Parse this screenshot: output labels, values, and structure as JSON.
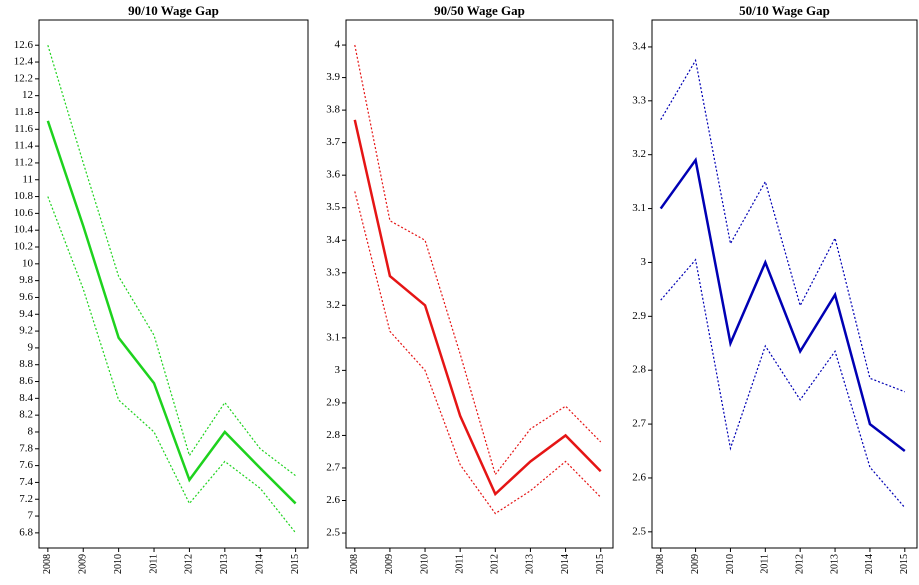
{
  "chart_data": [
    {
      "type": "line",
      "title": "90/10 Wage Gap",
      "x": [
        2008,
        2009,
        2010,
        2011,
        2012,
        2013,
        2014,
        2015
      ],
      "xlim": [
        2007.75,
        2015.35
      ],
      "xticks": [
        2008,
        2009,
        2010,
        2011,
        2012,
        2013,
        2014,
        2015
      ],
      "ylim": [
        6.62,
        12.9
      ],
      "yticks": [
        6.8,
        7,
        7.2,
        7.4,
        7.6,
        7.8,
        8,
        8.2,
        8.4,
        8.6,
        8.8,
        9,
        9.2,
        9.4,
        9.6,
        9.8,
        10,
        10.2,
        10.4,
        10.6,
        10.8,
        11,
        11.2,
        11.4,
        11.6,
        11.8,
        12,
        12.2,
        12.4,
        12.6
      ],
      "series": [
        {
          "color": "#1ed21e",
          "linestyle": "solid",
          "values": [
            11.7,
            10.45,
            9.12,
            8.58,
            7.43,
            8.0,
            7.57,
            7.15
          ]
        },
        {
          "color": "#1ed21e",
          "linestyle": "dotted",
          "values": [
            12.6,
            11.2,
            9.85,
            9.15,
            7.72,
            8.35,
            7.8,
            7.48
          ]
        },
        {
          "color": "#1ed21e",
          "linestyle": "dotted",
          "values": [
            10.8,
            9.7,
            8.38,
            8.0,
            7.15,
            7.65,
            7.33,
            6.8
          ]
        }
      ]
    },
    {
      "type": "line",
      "title": "90/50 Wage Gap",
      "x": [
        2008,
        2009,
        2010,
        2011,
        2012,
        2013,
        2014,
        2015
      ],
      "xlim": [
        2007.75,
        2015.35
      ],
      "xticks": [
        2008,
        2009,
        2010,
        2011,
        2012,
        2013,
        2014,
        2015
      ],
      "ylim": [
        2.454,
        4.077
      ],
      "yticks": [
        2.5,
        2.6,
        2.7,
        2.8,
        2.9,
        3,
        3.1,
        3.2,
        3.3,
        3.4,
        3.5,
        3.6,
        3.7,
        3.8,
        3.9,
        4
      ],
      "series": [
        {
          "color": "#e51515",
          "linestyle": "solid",
          "values": [
            3.77,
            3.29,
            3.2,
            2.86,
            2.62,
            2.72,
            2.8,
            2.69
          ]
        },
        {
          "color": "#e51515",
          "linestyle": "dotted",
          "values": [
            4.0,
            3.46,
            3.4,
            3.05,
            2.68,
            2.82,
            2.89,
            2.78
          ]
        },
        {
          "color": "#e51515",
          "linestyle": "dotted",
          "values": [
            3.55,
            3.12,
            3.0,
            2.71,
            2.56,
            2.63,
            2.72,
            2.61
          ]
        }
      ]
    },
    {
      "type": "line",
      "title": "50/10 Wage Gap",
      "x": [
        2008,
        2009,
        2010,
        2011,
        2012,
        2013,
        2014,
        2015
      ],
      "xlim": [
        2007.75,
        2015.35
      ],
      "xticks": [
        2008,
        2009,
        2010,
        2011,
        2012,
        2013,
        2014,
        2015
      ],
      "ylim": [
        2.47,
        3.45
      ],
      "yticks": [
        2.5,
        2.6,
        2.7,
        2.8,
        2.9,
        3,
        3.1,
        3.2,
        3.3,
        3.4
      ],
      "series": [
        {
          "color": "#0000b4",
          "linestyle": "solid",
          "values": [
            3.1,
            3.19,
            2.85,
            3.0,
            2.835,
            2.94,
            2.7,
            2.65
          ]
        },
        {
          "color": "#0000b4",
          "linestyle": "dotted",
          "values": [
            3.265,
            3.375,
            3.035,
            3.15,
            2.92,
            3.045,
            2.785,
            2.76
          ]
        },
        {
          "color": "#0000b4",
          "linestyle": "dotted",
          "values": [
            2.93,
            3.005,
            2.655,
            2.845,
            2.745,
            2.835,
            2.62,
            2.545
          ]
        }
      ]
    }
  ]
}
